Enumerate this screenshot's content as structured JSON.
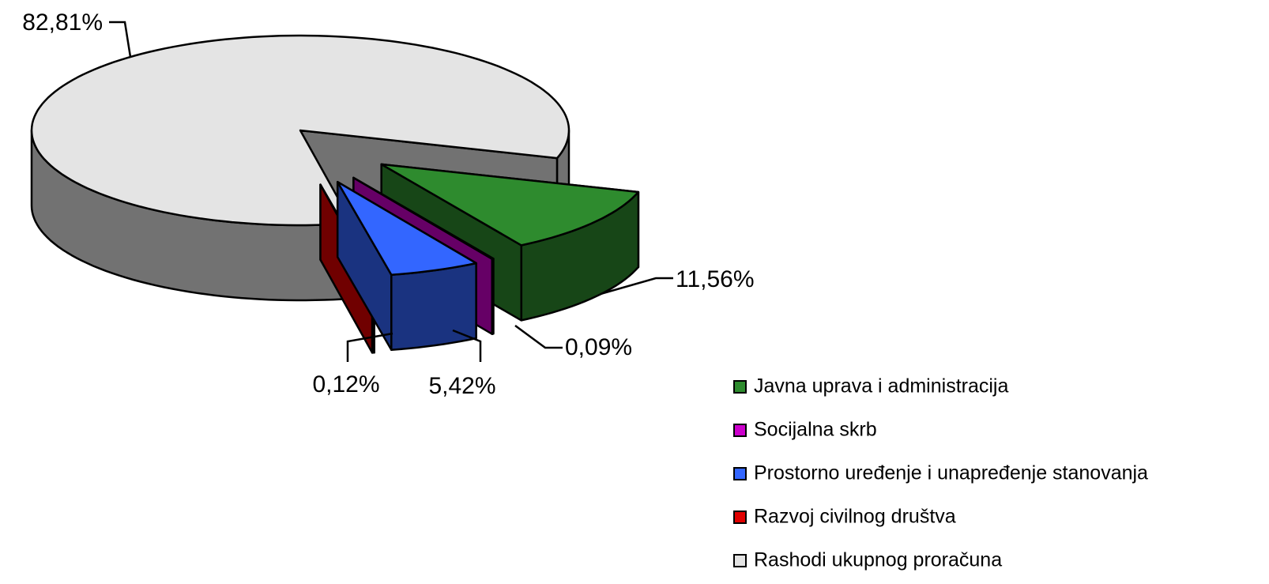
{
  "chart_data": {
    "type": "pie",
    "categories": [
      "Javna uprava i administracija",
      "Socijalna skrb",
      "Prostorno uređenje i unapređenje stanovanja",
      "Razvoj civilnog društva",
      "Rashodi ukupnog proračuna"
    ],
    "values": [
      11.56,
      0.09,
      5.42,
      0.12,
      82.81
    ],
    "value_labels": [
      "11,56%",
      "0,09%",
      "5,42%",
      "0,12%",
      "82,81%"
    ],
    "colors": [
      "#2e8b2e",
      "#cc00cc",
      "#3366ff",
      "#e00000",
      "#e4e4e4"
    ],
    "legend": "right"
  }
}
